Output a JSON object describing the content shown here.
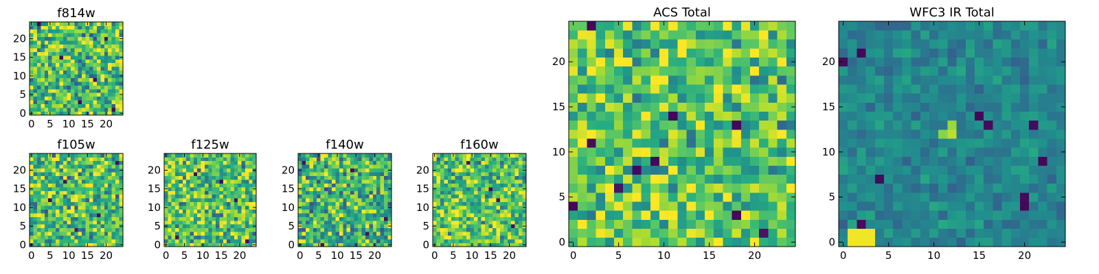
{
  "chart_data": [
    {
      "type": "heatmap",
      "title": "f814w",
      "grid_size": 25,
      "xlim": [
        0,
        24
      ],
      "ylim": [
        0,
        24
      ],
      "xticks": [
        0,
        5,
        10,
        15,
        20
      ],
      "yticks": [
        0,
        5,
        10,
        15,
        20
      ],
      "xtick_labels": [
        "0",
        "5",
        "10",
        "15",
        "20"
      ],
      "ytick_labels": [
        "0",
        "5",
        "10",
        "15",
        "20"
      ],
      "colormap": "viridis",
      "value_range": [
        0,
        1
      ],
      "distribution": {
        "kind": "noise",
        "mean": 0.72,
        "spread": 0.48,
        "seed": 11
      },
      "peaks": [
        [
          2,
          24,
          0.02
        ],
        [
          8,
          15,
          0.03
        ],
        [
          13,
          3,
          0.02
        ],
        [
          20,
          20,
          0.05
        ],
        [
          17,
          9,
          0.04
        ],
        [
          22,
          1,
          0.03
        ]
      ]
    },
    {
      "type": "heatmap",
      "title": "f105w",
      "grid_size": 25,
      "xlim": [
        0,
        24
      ],
      "ylim": [
        0,
        24
      ],
      "xticks": [
        0,
        5,
        10,
        15,
        20
      ],
      "yticks": [
        0,
        5,
        10,
        15,
        20
      ],
      "xtick_labels": [
        "0",
        "5",
        "10",
        "15",
        "20"
      ],
      "ytick_labels": [
        "0",
        "5",
        "10",
        "15",
        "20"
      ],
      "colormap": "viridis",
      "value_range": [
        0,
        1
      ],
      "distribution": {
        "kind": "noise",
        "mean": 0.7,
        "spread": 0.45,
        "seed": 23
      },
      "peaks": [
        [
          5,
          12,
          0.03
        ],
        [
          9,
          17,
          0.05
        ],
        [
          18,
          8,
          0.04
        ],
        [
          23,
          22,
          0.04
        ],
        [
          12,
          4,
          0.06
        ]
      ]
    },
    {
      "type": "heatmap",
      "title": "f125w",
      "grid_size": 25,
      "xlim": [
        0,
        24
      ],
      "ylim": [
        0,
        24
      ],
      "xticks": [
        0,
        5,
        10,
        15,
        20
      ],
      "yticks": [
        0,
        5,
        10,
        15,
        20
      ],
      "xtick_labels": [
        "0",
        "5",
        "10",
        "15",
        "20"
      ],
      "ytick_labels": [
        "0",
        "5",
        "10",
        "15",
        "20"
      ],
      "colormap": "viridis",
      "value_range": [
        0,
        1
      ],
      "distribution": {
        "kind": "noise",
        "mean": 0.72,
        "spread": 0.45,
        "seed": 37
      },
      "peaks": [
        [
          8,
          19,
          0.03
        ],
        [
          15,
          17,
          0.02
        ],
        [
          19,
          12,
          0.04
        ],
        [
          3,
          2,
          0.05
        ],
        [
          22,
          1,
          0.03
        ]
      ]
    },
    {
      "type": "heatmap",
      "title": "f140w",
      "grid_size": 25,
      "xlim": [
        0,
        24
      ],
      "ylim": [
        0,
        24
      ],
      "xticks": [
        0,
        5,
        10,
        15,
        20
      ],
      "yticks": [
        0,
        5,
        10,
        15,
        20
      ],
      "xtick_labels": [
        "0",
        "5",
        "10",
        "15",
        "20"
      ],
      "ytick_labels": [
        "0",
        "5",
        "10",
        "15",
        "20"
      ],
      "colormap": "viridis",
      "value_range": [
        0,
        1
      ],
      "distribution": {
        "kind": "noise",
        "mean": 0.66,
        "spread": 0.45,
        "seed": 53
      },
      "peaks": [
        [
          1,
          22,
          0.04
        ],
        [
          14,
          20,
          0.03
        ],
        [
          23,
          7,
          0.04
        ],
        [
          6,
          0,
          0.05
        ],
        [
          18,
          3,
          0.06
        ]
      ]
    },
    {
      "type": "heatmap",
      "title": "f160w",
      "grid_size": 25,
      "xlim": [
        0,
        24
      ],
      "ylim": [
        0,
        24
      ],
      "xticks": [
        0,
        5,
        10,
        15,
        20
      ],
      "yticks": [
        0,
        5,
        10,
        15,
        20
      ],
      "xtick_labels": [
        "0",
        "5",
        "10",
        "15",
        "20"
      ],
      "ytick_labels": [
        "0",
        "5",
        "10",
        "15",
        "20"
      ],
      "colormap": "viridis",
      "value_range": [
        0,
        1
      ],
      "distribution": {
        "kind": "noise",
        "mean": 0.74,
        "spread": 0.42,
        "seed": 71
      },
      "peaks": [
        [
          15,
          15,
          0.03
        ],
        [
          17,
          12,
          0.05
        ],
        [
          21,
          5,
          0.04
        ],
        [
          9,
          22,
          0.06
        ]
      ]
    },
    {
      "type": "heatmap",
      "title": "ACS Total",
      "grid_size": 25,
      "xlim": [
        0,
        24
      ],
      "ylim": [
        0,
        24
      ],
      "xticks": [
        0,
        5,
        10,
        15,
        20
      ],
      "yticks": [
        0,
        5,
        10,
        15,
        20
      ],
      "xtick_labels": [
        "0",
        "5",
        "10",
        "15",
        "20"
      ],
      "ytick_labels": [
        "0",
        "5",
        "10",
        "15",
        "20"
      ],
      "colormap": "viridis",
      "value_range": [
        0,
        1
      ],
      "distribution": {
        "kind": "noise",
        "mean": 0.74,
        "spread": 0.4,
        "seed": 97
      },
      "peaks": [
        [
          2,
          24,
          0.02
        ],
        [
          0,
          4,
          0.02
        ],
        [
          2,
          11,
          0.03
        ],
        [
          7,
          8,
          0.02
        ],
        [
          9,
          9,
          0.02
        ],
        [
          11,
          14,
          0.02
        ],
        [
          18,
          13,
          0.02
        ],
        [
          18,
          3,
          0.02
        ],
        [
          5,
          6,
          0.06
        ],
        [
          21,
          1,
          0.06
        ],
        [
          2,
          23,
          0.97
        ],
        [
          2,
          22,
          0.95
        ],
        [
          18,
          12,
          0.98
        ],
        [
          18,
          11,
          0.97
        ]
      ]
    },
    {
      "type": "heatmap",
      "title": "WFC3 IR Total",
      "grid_size": 25,
      "xlim": [
        0,
        24
      ],
      "ylim": [
        0,
        24
      ],
      "xticks": [
        0,
        5,
        10,
        15,
        20
      ],
      "yticks": [
        0,
        5,
        10,
        15,
        20
      ],
      "xtick_labels": [
        "0",
        "5",
        "10",
        "15",
        "20"
      ],
      "ytick_labels": [
        "0",
        "5",
        "10",
        "15",
        "20"
      ],
      "colormap": "viridis",
      "value_range": [
        0,
        1
      ],
      "distribution": {
        "kind": "noise",
        "mean": 0.46,
        "spread": 0.16,
        "seed": 131
      },
      "peaks": [
        [
          2,
          21,
          0.02
        ],
        [
          0,
          20,
          0.03
        ],
        [
          2,
          2,
          0.03
        ],
        [
          4,
          7,
          0.03
        ],
        [
          15,
          14,
          0.02
        ],
        [
          16,
          13,
          0.03
        ],
        [
          21,
          13,
          0.03
        ],
        [
          22,
          9,
          0.02
        ],
        [
          20,
          4,
          0.02
        ],
        [
          20,
          5,
          0.03
        ],
        [
          12,
          13,
          0.85
        ],
        [
          12,
          12,
          0.9
        ],
        [
          11,
          12,
          0.82
        ],
        [
          1,
          0,
          0.98
        ],
        [
          2,
          0,
          0.98
        ],
        [
          3,
          0,
          0.98
        ],
        [
          1,
          1,
          0.98
        ],
        [
          2,
          1,
          0.98
        ],
        [
          3,
          1,
          0.98
        ]
      ]
    }
  ]
}
